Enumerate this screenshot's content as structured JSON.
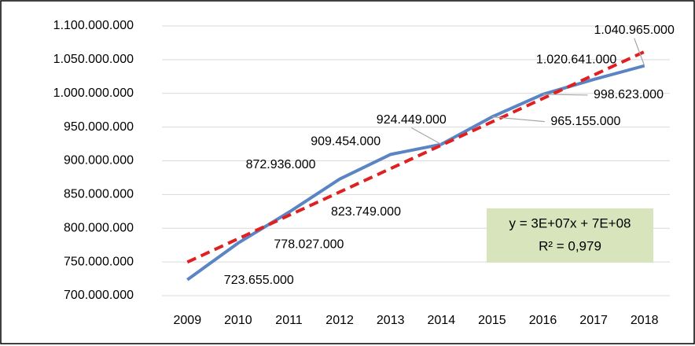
{
  "chart_data": {
    "type": "line",
    "categories": [
      "2009",
      "2010",
      "2011",
      "2012",
      "2013",
      "2014",
      "2015",
      "2016",
      "2017",
      "2018"
    ],
    "values": [
      723655000,
      778027000,
      823749000,
      872936000,
      909454000,
      924449000,
      965155000,
      998623000,
      1020641000,
      1040965000
    ],
    "value_labels": [
      "723.655.000",
      "778.027.000",
      "823.749.000",
      "872.936.000",
      "909.454.000",
      "924.449.000",
      "965.155.000",
      "998.623.000",
      "1.020.641.000",
      "1.040.965.000"
    ],
    "color": "#5b84c4",
    "ylim": [
      700000000,
      1100000000
    ],
    "yticks": [
      {
        "value": 700000000,
        "label": "700.000.000"
      },
      {
        "value": 750000000,
        "label": "750.000.000"
      },
      {
        "value": 800000000,
        "label": "800.000.000"
      },
      {
        "value": 850000000,
        "label": "850.000.000"
      },
      {
        "value": 900000000,
        "label": "900.000.000"
      },
      {
        "value": 950000000,
        "label": "950.000.000"
      },
      {
        "value": 1000000000,
        "label": "1.000.000.000"
      },
      {
        "value": 1050000000,
        "label": "1.050.000.000"
      },
      {
        "value": 1100000000,
        "label": "1.100.000.000"
      }
    ],
    "grid": true,
    "trendline": {
      "start": 749762500,
      "end": 1061768300,
      "color": "#e02020",
      "equation": "y = 3E+07x + 7E+08",
      "r_squared": "R² = 0,979"
    }
  }
}
